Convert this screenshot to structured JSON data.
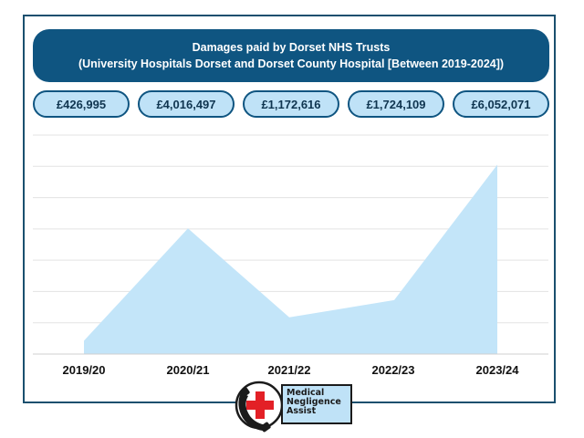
{
  "title": {
    "line1": "Damages paid by Dorset NHS Trusts",
    "line2": "(University Hospitals Dorset and Dorset County Hospital [Between 2019-2024])"
  },
  "value_labels": [
    "£426,995",
    "£4,016,497",
    "£1,172,616",
    "£1,724,109",
    "£6,052,071"
  ],
  "logo": {
    "line1": "Medical",
    "line2": "Negligence",
    "line3": "Assist"
  },
  "colors": {
    "title_bg": "#0f5581",
    "pill_bg": "#bfe2f7",
    "area_fill": "#c3e5f9",
    "frame": "#1a4f6e",
    "cross_red": "#e32026"
  },
  "chart_data": {
    "type": "area",
    "title": "Damages paid by Dorset NHS Trusts",
    "subtitle": "(University Hospitals Dorset and Dorset County Hospital [Between 2019-2024])",
    "categories": [
      "2019/20",
      "2020/21",
      "2021/22",
      "2022/23",
      "2023/24"
    ],
    "values": [
      426995,
      4016497,
      1172616,
      1724109,
      6052071
    ],
    "xlabel": "",
    "ylabel": "",
    "ylim": [
      0,
      7000000
    ],
    "grid": true,
    "legend": "none"
  }
}
